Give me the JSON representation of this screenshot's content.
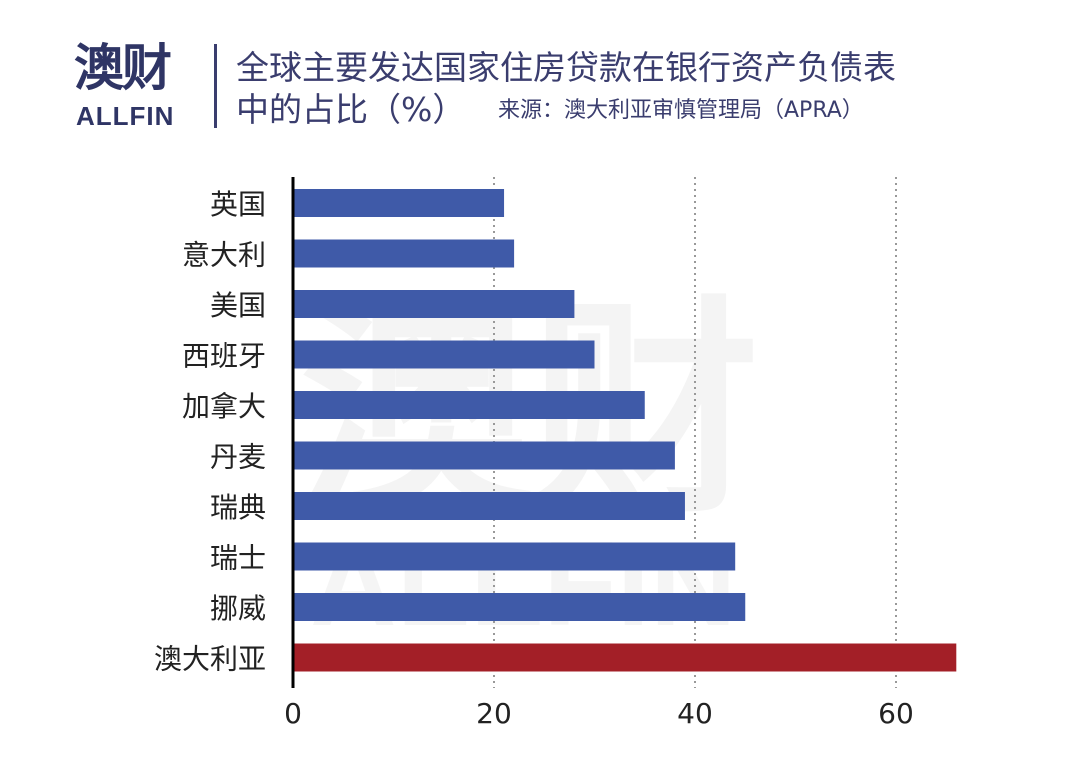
{
  "header": {
    "logo_main": "澳财",
    "logo_sub": "ALLFIN",
    "title_line1": "全球主要发达国家住房贷款在银行资产负债表",
    "title_line2": "中的占比（%）",
    "source": "来源：澳大利亚审慎管理局（APRA）"
  },
  "watermark": {
    "main": "澳财",
    "sub": "ALLFIN"
  },
  "colors": {
    "bar": "#3f5aa8",
    "highlight": "#a31f27",
    "axis": "#000000",
    "grid": "#999999",
    "title": "#3a3d6e"
  },
  "chart_data": {
    "type": "bar",
    "orientation": "horizontal",
    "categories": [
      "英国",
      "意大利",
      "美国",
      "西班牙",
      "加拿大",
      "丹麦",
      "瑞典",
      "瑞士",
      "挪威",
      "澳大利亚"
    ],
    "values": [
      21,
      22,
      28,
      30,
      35,
      38,
      39,
      44,
      45,
      66
    ],
    "highlight_category": "澳大利亚",
    "xlim": [
      0,
      66
    ],
    "xticks": [
      0,
      20,
      40,
      60
    ],
    "title": "",
    "xlabel": "",
    "ylabel": "",
    "grid": "vertical dotted",
    "legend": "none"
  }
}
